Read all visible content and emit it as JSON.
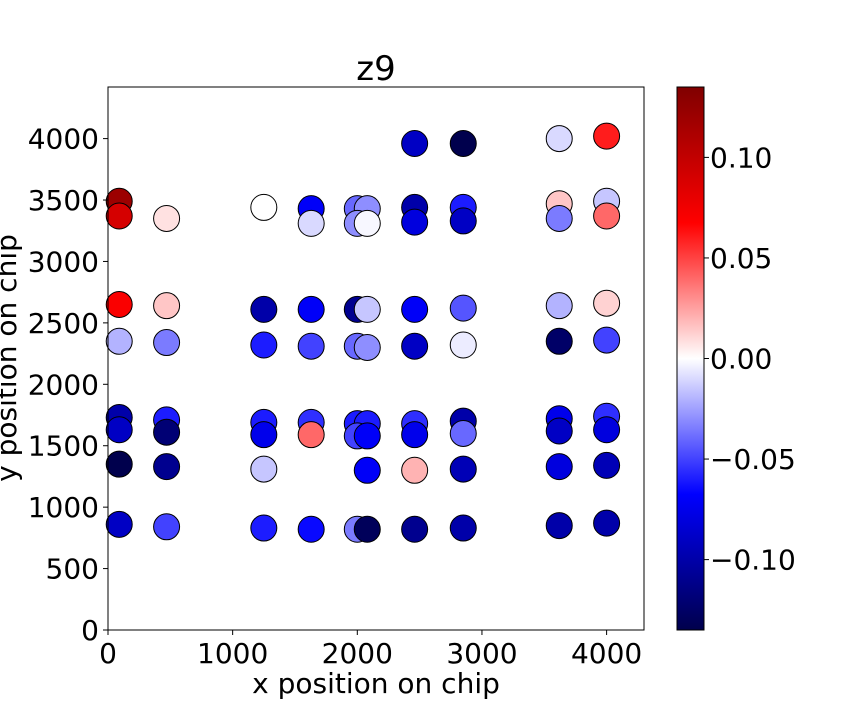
{
  "chart_data": {
    "type": "scatter",
    "title": "z9",
    "xlabel": "x position on chip",
    "ylabel": "y position on chip",
    "xlim": [
      0,
      4300
    ],
    "ylim": [
      0,
      4420
    ],
    "xticks": [
      0,
      1000,
      2000,
      3000,
      4000
    ],
    "yticks": [
      0,
      500,
      1000,
      1500,
      2000,
      2500,
      3000,
      3500,
      4000
    ],
    "colormap": "seismic",
    "colorbar": {
      "vmin": -0.135,
      "vmax": 0.135,
      "ticks": [
        0.1,
        0.05,
        0.0,
        -0.05,
        -0.1
      ],
      "tick_labels": [
        "0.10",
        "0.05",
        "0.00",
        "−0.05",
        "−0.10"
      ]
    },
    "grid": false,
    "points": [
      {
        "x": 2460,
        "y": 3960,
        "z": -0.09
      },
      {
        "x": 2850,
        "y": 3960,
        "z": -0.135
      },
      {
        "x": 3620,
        "y": 4000,
        "z": -0.01
      },
      {
        "x": 4000,
        "y": 4020,
        "z": 0.06
      },
      {
        "x": 90,
        "y": 3490,
        "z": 0.12
      },
      {
        "x": 90,
        "y": 3370,
        "z": 0.09
      },
      {
        "x": 470,
        "y": 3350,
        "z": 0.008
      },
      {
        "x": 1250,
        "y": 3440,
        "z": 0.0
      },
      {
        "x": 1630,
        "y": 3430,
        "z": -0.07
      },
      {
        "x": 1630,
        "y": 3310,
        "z": -0.01
      },
      {
        "x": 2000,
        "y": 3430,
        "z": -0.04
      },
      {
        "x": 2080,
        "y": 3430,
        "z": -0.03
      },
      {
        "x": 2000,
        "y": 3310,
        "z": -0.03
      },
      {
        "x": 2080,
        "y": 3310,
        "z": -0.002
      },
      {
        "x": 2460,
        "y": 3440,
        "z": -0.1
      },
      {
        "x": 2460,
        "y": 3320,
        "z": -0.08
      },
      {
        "x": 2850,
        "y": 3440,
        "z": -0.06
      },
      {
        "x": 2850,
        "y": 3330,
        "z": -0.09
      },
      {
        "x": 3620,
        "y": 3470,
        "z": 0.015
      },
      {
        "x": 3620,
        "y": 3350,
        "z": -0.035
      },
      {
        "x": 4000,
        "y": 3490,
        "z": -0.015
      },
      {
        "x": 4000,
        "y": 3370,
        "z": 0.04
      },
      {
        "x": 90,
        "y": 2650,
        "z": 0.07
      },
      {
        "x": 90,
        "y": 2350,
        "z": -0.02
      },
      {
        "x": 470,
        "y": 2640,
        "z": 0.015
      },
      {
        "x": 470,
        "y": 2340,
        "z": -0.035
      },
      {
        "x": 1250,
        "y": 2610,
        "z": -0.1
      },
      {
        "x": 1250,
        "y": 2320,
        "z": -0.06
      },
      {
        "x": 1630,
        "y": 2610,
        "z": -0.07
      },
      {
        "x": 1630,
        "y": 2310,
        "z": -0.05
      },
      {
        "x": 2000,
        "y": 2610,
        "z": -0.11
      },
      {
        "x": 2080,
        "y": 2610,
        "z": -0.015
      },
      {
        "x": 2000,
        "y": 2310,
        "z": -0.04
      },
      {
        "x": 2080,
        "y": 2300,
        "z": -0.03
      },
      {
        "x": 2460,
        "y": 2610,
        "z": -0.07
      },
      {
        "x": 2460,
        "y": 2310,
        "z": -0.09
      },
      {
        "x": 2850,
        "y": 2620,
        "z": -0.045
      },
      {
        "x": 2850,
        "y": 2320,
        "z": -0.005
      },
      {
        "x": 3620,
        "y": 2640,
        "z": -0.02
      },
      {
        "x": 3620,
        "y": 2350,
        "z": -0.125
      },
      {
        "x": 4000,
        "y": 2660,
        "z": 0.012
      },
      {
        "x": 4000,
        "y": 2360,
        "z": -0.05
      },
      {
        "x": 90,
        "y": 1730,
        "z": -0.1
      },
      {
        "x": 90,
        "y": 1630,
        "z": -0.09
      },
      {
        "x": 470,
        "y": 1710,
        "z": -0.06
      },
      {
        "x": 470,
        "y": 1610,
        "z": -0.12
      },
      {
        "x": 1250,
        "y": 1690,
        "z": -0.06
      },
      {
        "x": 1250,
        "y": 1590,
        "z": -0.075
      },
      {
        "x": 1630,
        "y": 1690,
        "z": -0.055
      },
      {
        "x": 1630,
        "y": 1590,
        "z": 0.04
      },
      {
        "x": 2000,
        "y": 1680,
        "z": -0.06
      },
      {
        "x": 2080,
        "y": 1680,
        "z": -0.06
      },
      {
        "x": 2000,
        "y": 1580,
        "z": -0.05
      },
      {
        "x": 2080,
        "y": 1580,
        "z": -0.07
      },
      {
        "x": 2460,
        "y": 1680,
        "z": -0.055
      },
      {
        "x": 2460,
        "y": 1590,
        "z": -0.075
      },
      {
        "x": 2850,
        "y": 1700,
        "z": -0.1
      },
      {
        "x": 2850,
        "y": 1600,
        "z": -0.04
      },
      {
        "x": 3620,
        "y": 1720,
        "z": -0.075
      },
      {
        "x": 3620,
        "y": 1620,
        "z": -0.09
      },
      {
        "x": 4000,
        "y": 1740,
        "z": -0.055
      },
      {
        "x": 4000,
        "y": 1630,
        "z": -0.08
      },
      {
        "x": 90,
        "y": 1350,
        "z": -0.135
      },
      {
        "x": 470,
        "y": 1330,
        "z": -0.11
      },
      {
        "x": 1250,
        "y": 1310,
        "z": -0.015
      },
      {
        "x": 2080,
        "y": 1300,
        "z": -0.07
      },
      {
        "x": 2460,
        "y": 1300,
        "z": 0.02
      },
      {
        "x": 2850,
        "y": 1310,
        "z": -0.095
      },
      {
        "x": 3620,
        "y": 1330,
        "z": -0.08
      },
      {
        "x": 4000,
        "y": 1340,
        "z": -0.095
      },
      {
        "x": 90,
        "y": 860,
        "z": -0.09
      },
      {
        "x": 470,
        "y": 840,
        "z": -0.05
      },
      {
        "x": 1250,
        "y": 830,
        "z": -0.06
      },
      {
        "x": 1630,
        "y": 820,
        "z": -0.065
      },
      {
        "x": 2000,
        "y": 820,
        "z": -0.035
      },
      {
        "x": 2080,
        "y": 820,
        "z": -0.13
      },
      {
        "x": 2460,
        "y": 820,
        "z": -0.11
      },
      {
        "x": 2850,
        "y": 830,
        "z": -0.1
      },
      {
        "x": 3620,
        "y": 850,
        "z": -0.1
      },
      {
        "x": 4000,
        "y": 870,
        "z": -0.1
      }
    ]
  }
}
